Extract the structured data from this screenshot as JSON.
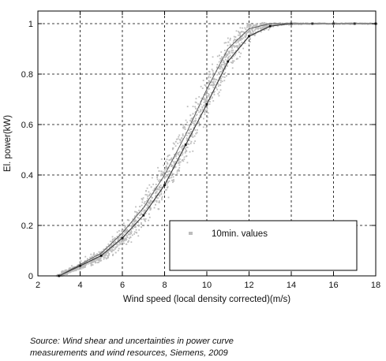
{
  "chart_data": {
    "type": "scatter",
    "xlabel": "Wind speed (local density corrected)(m/s)",
    "ylabel": "El. power(kW)",
    "xlim": [
      2,
      18
    ],
    "ylim": [
      0,
      1.05
    ],
    "x_ticks": [
      "2",
      "4",
      "6",
      "8",
      "10",
      "12",
      "14",
      "16",
      "18"
    ],
    "y_ticks": [
      "0",
      "0.2",
      "0.4",
      "0.6",
      "0.8",
      "1"
    ],
    "grid": true,
    "legend": {
      "placement": "bottom-right",
      "entries": [
        "10min. values"
      ]
    },
    "series": [
      {
        "name": "10min. values",
        "kind": "scatter-cloud",
        "color": "#bdbdbd",
        "center_x": [
          3.0,
          3.5,
          4.0,
          4.5,
          5.0,
          5.5,
          6.0,
          6.5,
          7.0,
          7.5,
          8.0,
          8.5,
          9.0,
          9.5,
          10.0,
          10.5,
          11.0,
          11.5,
          12.0,
          12.5,
          13.0,
          13.5,
          14.0,
          15.0,
          16.0,
          17.0,
          18.0
        ],
        "center_y": [
          0.0,
          0.02,
          0.04,
          0.06,
          0.08,
          0.11,
          0.15,
          0.2,
          0.26,
          0.32,
          0.39,
          0.46,
          0.54,
          0.62,
          0.7,
          0.79,
          0.87,
          0.93,
          0.97,
          0.985,
          0.995,
          1.0,
          1.0,
          1.0,
          1.0,
          1.0,
          1.0
        ],
        "spread": [
          0.005,
          0.01,
          0.02,
          0.025,
          0.03,
          0.04,
          0.05,
          0.06,
          0.07,
          0.08,
          0.09,
          0.1,
          0.1,
          0.1,
          0.1,
          0.09,
          0.08,
          0.06,
          0.04,
          0.025,
          0.015,
          0.008,
          0.005,
          0.003,
          0.003,
          0.003,
          0.003
        ]
      },
      {
        "kind": "line-markers",
        "color": "#333333",
        "x": [
          3.0,
          4.0,
          5.0,
          6.0,
          7.0,
          8.0,
          9.0,
          10.0,
          11.0,
          12.0,
          13.0,
          14.0,
          15.0,
          16.0,
          17.0,
          18.0
        ],
        "y": [
          0.0,
          0.04,
          0.08,
          0.15,
          0.24,
          0.36,
          0.52,
          0.68,
          0.85,
          0.95,
          0.99,
          1.0,
          1.0,
          1.0,
          1.0,
          1.0
        ]
      },
      {
        "kind": "line",
        "color": "#555555",
        "x": [
          3.0,
          4.0,
          5.0,
          6.0,
          7.0,
          8.0,
          9.0,
          10.0,
          11.0,
          12.0,
          13.0,
          14.0,
          15.0,
          16.0,
          17.0,
          18.0
        ],
        "y": [
          0.0,
          0.045,
          0.09,
          0.17,
          0.27,
          0.4,
          0.56,
          0.74,
          0.9,
          0.98,
          1.0,
          1.0,
          1.0,
          1.0,
          1.0,
          1.0
        ]
      }
    ]
  },
  "source": {
    "line1": "Source: Wind shear and uncertainties in power curve",
    "line2": "measurements and wind resources, Siemens, 2009"
  }
}
